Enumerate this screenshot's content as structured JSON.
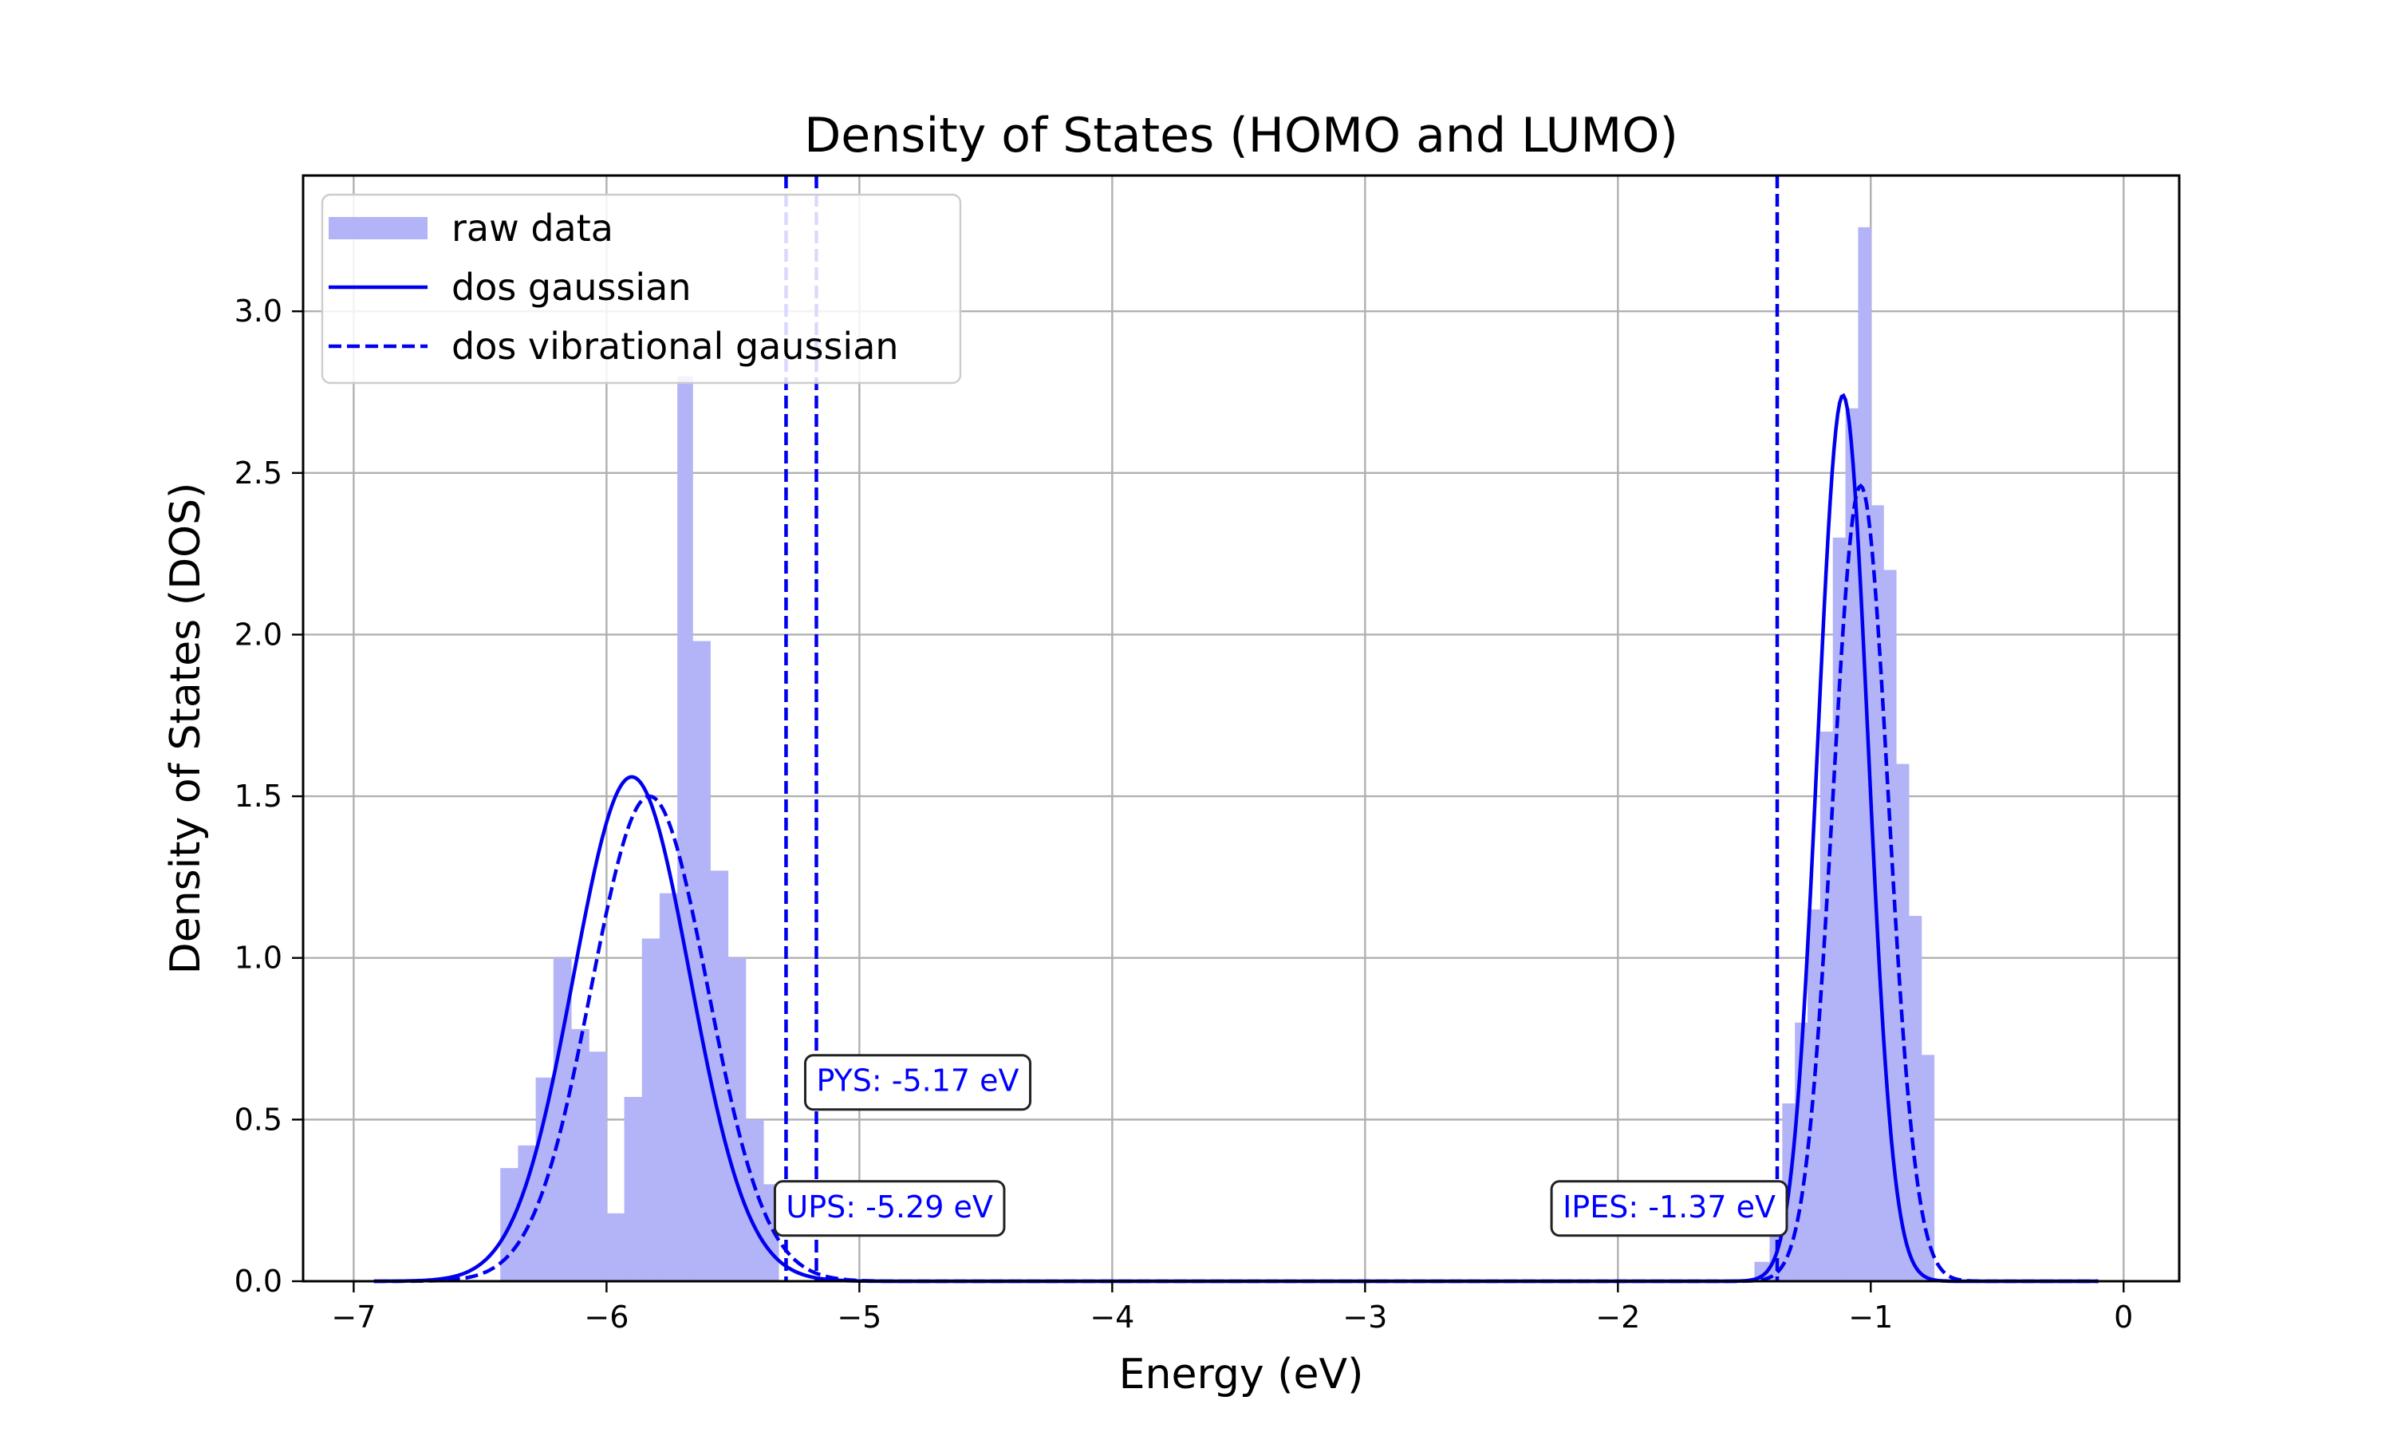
{
  "chart_data": {
    "type": "bar",
    "title": "Density of States (HOMO and LUMO)",
    "xlabel": "Energy (eV)",
    "ylabel": "Density of States (DOS)",
    "xlim": [
      -7.2,
      0.22
    ],
    "ylim": [
      0,
      3.42
    ],
    "xticks": [
      -7,
      -6,
      -5,
      -4,
      -3,
      -2,
      -1,
      0
    ],
    "xtick_labels": [
      "−7",
      "−6",
      "−5",
      "−4",
      "−3",
      "−2",
      "−1",
      "0"
    ],
    "yticks": [
      0,
      0.5,
      1.0,
      1.5,
      2.0,
      2.5,
      3.0
    ],
    "ytick_labels": [
      "0.0",
      "0.5",
      "1.0",
      "1.5",
      "2.0",
      "2.5",
      "3.0"
    ],
    "grid": true,
    "legend_position": "upper-left",
    "series": [
      {
        "name": "raw data",
        "kind": "histogram",
        "color": "#b3b3f7",
        "bins": [
          {
            "x0": -6.42,
            "x1": -6.35,
            "y": 0.35
          },
          {
            "x0": -6.35,
            "x1": -6.28,
            "y": 0.42
          },
          {
            "x0": -6.28,
            "x1": -6.21,
            "y": 0.63
          },
          {
            "x0": -6.21,
            "x1": -6.14,
            "y": 1.0
          },
          {
            "x0": -6.14,
            "x1": -6.07,
            "y": 0.78
          },
          {
            "x0": -6.07,
            "x1": -6.0,
            "y": 0.71
          },
          {
            "x0": -6.0,
            "x1": -5.93,
            "y": 0.21
          },
          {
            "x0": -5.93,
            "x1": -5.86,
            "y": 0.57
          },
          {
            "x0": -5.86,
            "x1": -5.79,
            "y": 1.06
          },
          {
            "x0": -5.79,
            "x1": -5.72,
            "y": 1.2
          },
          {
            "x0": -5.72,
            "x1": -5.66,
            "y": 2.8
          },
          {
            "x0": -5.66,
            "x1": -5.59,
            "y": 1.98
          },
          {
            "x0": -5.59,
            "x1": -5.52,
            "y": 1.27
          },
          {
            "x0": -5.52,
            "x1": -5.45,
            "y": 1.0
          },
          {
            "x0": -5.45,
            "x1": -5.38,
            "y": 0.5
          },
          {
            "x0": -5.38,
            "x1": -5.32,
            "y": 0.3
          },
          {
            "x0": -1.46,
            "x1": -1.4,
            "y": 0.06
          },
          {
            "x0": -1.4,
            "x1": -1.35,
            "y": 0.3
          },
          {
            "x0": -1.35,
            "x1": -1.3,
            "y": 0.55
          },
          {
            "x0": -1.3,
            "x1": -1.25,
            "y": 0.8
          },
          {
            "x0": -1.25,
            "x1": -1.2,
            "y": 1.15
          },
          {
            "x0": -1.2,
            "x1": -1.15,
            "y": 1.7
          },
          {
            "x0": -1.15,
            "x1": -1.1,
            "y": 2.3
          },
          {
            "x0": -1.1,
            "x1": -1.05,
            "y": 2.7
          },
          {
            "x0": -1.05,
            "x1": -1.0,
            "y": 3.26
          },
          {
            "x0": -1.0,
            "x1": -0.95,
            "y": 2.4
          },
          {
            "x0": -0.95,
            "x1": -0.9,
            "y": 2.2
          },
          {
            "x0": -0.9,
            "x1": -0.85,
            "y": 1.6
          },
          {
            "x0": -0.85,
            "x1": -0.8,
            "y": 1.13
          },
          {
            "x0": -0.8,
            "x1": -0.75,
            "y": 0.7
          }
        ]
      },
      {
        "name": "dos gaussian",
        "kind": "line",
        "style": "solid",
        "color": "#0000ee",
        "x_range": [
          -6.92,
          -0.1
        ],
        "components": [
          {
            "amplitude": 1.56,
            "center": -5.9,
            "sigma": 0.23
          },
          {
            "amplitude": 2.74,
            "center": -1.11,
            "sigma": 0.1
          }
        ]
      },
      {
        "name": "dos vibrational gaussian",
        "kind": "line",
        "style": "dashed",
        "color": "#0000ee",
        "x_range": [
          -6.92,
          -0.1
        ],
        "components": [
          {
            "amplitude": 1.5,
            "center": -5.83,
            "sigma": 0.23
          },
          {
            "amplitude": 2.46,
            "center": -1.04,
            "sigma": 0.11
          }
        ]
      }
    ],
    "vlines": [
      {
        "x": -5.29,
        "color": "#0000ee",
        "style": "dashed"
      },
      {
        "x": -5.17,
        "color": "#0000ee",
        "style": "dashed"
      },
      {
        "x": -1.37,
        "color": "#0000ee",
        "style": "dashed"
      }
    ],
    "annotations": [
      {
        "text": "PYS: -5.17 eV",
        "x": -5.17,
        "y": 0.62,
        "align": "left"
      },
      {
        "text": "UPS: -5.29 eV",
        "x": -5.29,
        "y": 0.23,
        "align": "left"
      },
      {
        "text": "IPES: -1.37 eV",
        "x": -1.37,
        "y": 0.23,
        "align": "right"
      }
    ]
  }
}
